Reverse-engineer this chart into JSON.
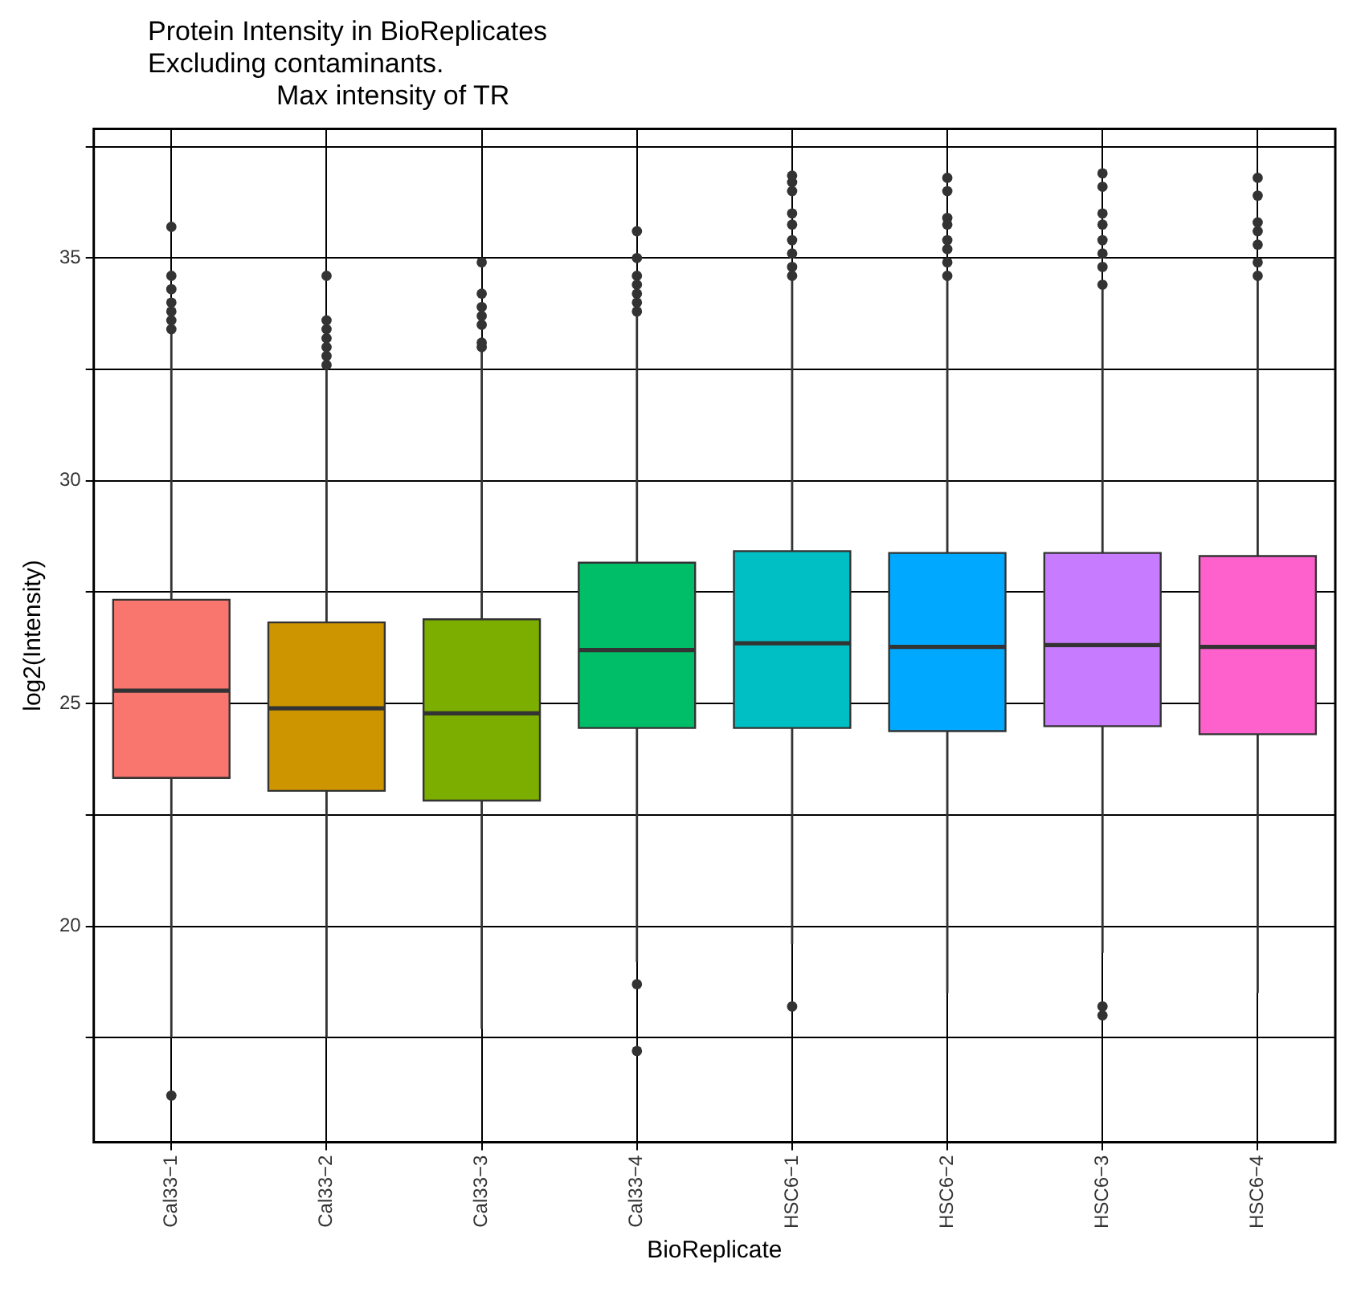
{
  "chart_data": {
    "type": "box",
    "title": "Protein Intensity in BioReplicates",
    "subtitle": "Excluding contaminants.\nMax intensity of TR",
    "xlabel": "BioReplicate",
    "ylabel": "log2(Intensity)",
    "categories": [
      "Cal33−1",
      "Cal33−2",
      "Cal33−3",
      "Cal33−4",
      "HSC6−1",
      "HSC6−2",
      "HSC6−3",
      "HSC6−4"
    ],
    "colors": [
      "#f8766d",
      "#cd9600",
      "#7cae00",
      "#00be67",
      "#00bfc4",
      "#00a9ff",
      "#c77cff",
      "#ff61cc"
    ],
    "boxes": [
      {
        "low": 17.5,
        "q1": 23.33,
        "median": 25.29,
        "q3": 27.33,
        "high": 33.3,
        "outliers": [
          35.7,
          34.6,
          34.3,
          34.0,
          33.8,
          33.6,
          33.4,
          16.2
        ]
      },
      {
        "low": 17.5,
        "q1": 23.04,
        "median": 24.89,
        "q3": 26.82,
        "high": 32.5,
        "outliers": [
          34.6,
          33.6,
          33.4,
          33.2,
          33.0,
          32.8,
          32.6
        ]
      },
      {
        "low": 17.7,
        "q1": 22.82,
        "median": 24.78,
        "q3": 26.89,
        "high": 32.9,
        "outliers": [
          34.9,
          34.2,
          33.9,
          33.7,
          33.5,
          33.1,
          33.0
        ]
      },
      {
        "low": 19.2,
        "q1": 24.45,
        "median": 26.2,
        "q3": 28.16,
        "high": 33.7,
        "outliers": [
          35.6,
          35.0,
          34.6,
          34.4,
          34.2,
          34.0,
          33.8,
          18.7,
          17.2
        ]
      },
      {
        "low": 19.6,
        "q1": 24.45,
        "median": 26.35,
        "q3": 28.42,
        "high": 34.5,
        "outliers": [
          36.85,
          36.7,
          36.5,
          36.0,
          35.75,
          35.4,
          35.1,
          34.8,
          34.6,
          18.2
        ]
      },
      {
        "low": 18.5,
        "q1": 24.38,
        "median": 26.27,
        "q3": 28.38,
        "high": 34.5,
        "outliers": [
          36.8,
          36.5,
          35.9,
          35.75,
          35.4,
          35.2,
          34.9,
          34.6
        ]
      },
      {
        "low": 19.4,
        "q1": 24.49,
        "median": 26.31,
        "q3": 28.38,
        "high": 34.3,
        "outliers": [
          36.9,
          36.6,
          36.0,
          35.75,
          35.4,
          35.1,
          34.8,
          34.4,
          18.2,
          18.0
        ]
      },
      {
        "low": 18.5,
        "q1": 24.31,
        "median": 26.27,
        "q3": 28.31,
        "high": 34.5,
        "outliers": [
          36.8,
          36.4,
          35.8,
          35.6,
          35.3,
          34.9,
          34.6
        ]
      }
    ],
    "ylim": [
      15.15,
      37.9
    ],
    "yticks": [
      {
        "value": 17.5,
        "label": null
      },
      20,
      {
        "value": 22.5,
        "label": null
      },
      25,
      {
        "value": 27.5,
        "label": null
      },
      30,
      {
        "value": 32.5,
        "label": null
      },
      35,
      {
        "value": 37.5,
        "label": null
      }
    ],
    "grid": true
  }
}
